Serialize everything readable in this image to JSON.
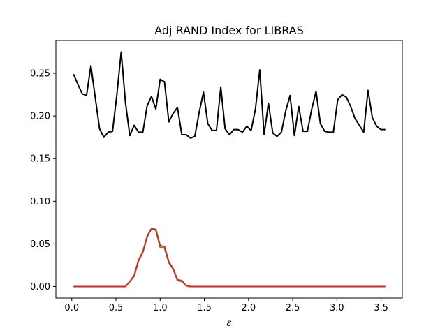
{
  "chart_data": {
    "type": "line",
    "title": "Adj RAND Index for LIBRAS",
    "xlabel": "ε",
    "ylabel": "",
    "xlim": [
      -0.18,
      3.74
    ],
    "ylim": [
      -0.0135,
      0.2885
    ],
    "xticks": [
      0.0,
      0.5,
      1.0,
      1.5,
      2.0,
      2.5,
      3.0,
      3.5
    ],
    "xtick_labels": [
      "0.0",
      "0.5",
      "1.0",
      "1.5",
      "2.0",
      "2.5",
      "3.0",
      "3.5"
    ],
    "yticks": [
      0.0,
      0.05,
      0.1,
      0.15,
      0.2,
      0.25
    ],
    "ytick_labels": [
      "0.00",
      "0.05",
      "0.10",
      "0.15",
      "0.20",
      "0.25"
    ],
    "grid": false,
    "legend": "none",
    "x": [
      0.02,
      0.069,
      0.118,
      0.167,
      0.216,
      0.265,
      0.314,
      0.363,
      0.412,
      0.461,
      0.51,
      0.559,
      0.608,
      0.657,
      0.706,
      0.755,
      0.804,
      0.853,
      0.902,
      0.951,
      1.0,
      1.049,
      1.098,
      1.147,
      1.196,
      1.245,
      1.294,
      1.343,
      1.392,
      1.441,
      1.49,
      1.539,
      1.588,
      1.637,
      1.686,
      1.735,
      1.784,
      1.833,
      1.882,
      1.931,
      1.98,
      2.029,
      2.078,
      2.127,
      2.176,
      2.225,
      2.274,
      2.323,
      2.372,
      2.421,
      2.47,
      2.519,
      2.568,
      2.617,
      2.666,
      2.715,
      2.764,
      2.813,
      2.862,
      2.911,
      2.96,
      3.009,
      3.058,
      3.107,
      3.156,
      3.205,
      3.254,
      3.303,
      3.352,
      3.401,
      3.45,
      3.499,
      3.548
    ],
    "series": [
      {
        "color": "#000000",
        "values": [
          0.249,
          0.237,
          0.226,
          0.224,
          0.259,
          0.222,
          0.185,
          0.175,
          0.181,
          0.182,
          0.225,
          0.275,
          0.215,
          0.177,
          0.189,
          0.181,
          0.181,
          0.212,
          0.223,
          0.208,
          0.243,
          0.24,
          0.193,
          0.203,
          0.21,
          0.178,
          0.178,
          0.174,
          0.176,
          0.204,
          0.228,
          0.191,
          0.183,
          0.183,
          0.234,
          0.185,
          0.178,
          0.184,
          0.184,
          0.181,
          0.188,
          0.183,
          0.208,
          0.254,
          0.178,
          0.215,
          0.18,
          0.176,
          0.181,
          0.206,
          0.224,
          0.177,
          0.211,
          0.182,
          0.182,
          0.208,
          0.229,
          0.191,
          0.182,
          0.181,
          0.181,
          0.219,
          0.225,
          0.222,
          0.211,
          0.197,
          0.189,
          0.181,
          0.23,
          0.198,
          0.188,
          0.184,
          0.184
        ]
      },
      {
        "color": "#2ca02c",
        "values": [
          0,
          0,
          0,
          0,
          0,
          0,
          0,
          0,
          0,
          0,
          0,
          0,
          0,
          0.006,
          0.012,
          0.03,
          0.04,
          0.058,
          0.068,
          0.066,
          0.046,
          0.045,
          0.028,
          0.02,
          0.007,
          0.006,
          0.001,
          0,
          0,
          0,
          0,
          0,
          0,
          0,
          0,
          0,
          0,
          0,
          0,
          0,
          0,
          0,
          0,
          0,
          0,
          0,
          0,
          0,
          0,
          0,
          0,
          0,
          0,
          0,
          0,
          0,
          0,
          0,
          0,
          0,
          0,
          0,
          0,
          0,
          0,
          0,
          0,
          0,
          0,
          0,
          0,
          0,
          0
        ]
      },
      {
        "color": "#d62728",
        "values": [
          0,
          0,
          0,
          0,
          0,
          0,
          0,
          0,
          0,
          0,
          0,
          0,
          0,
          0.006,
          0.013,
          0.031,
          0.041,
          0.059,
          0.068,
          0.067,
          0.048,
          0.047,
          0.029,
          0.021,
          0.008,
          0.007,
          0.001,
          0,
          0,
          0,
          0,
          0,
          0,
          0,
          0,
          0,
          0,
          0,
          0,
          0,
          0,
          0,
          0,
          0,
          0,
          0,
          0,
          0,
          0,
          0,
          0,
          0,
          0,
          0,
          0,
          0,
          0,
          0,
          0,
          0,
          0,
          0,
          0,
          0,
          0,
          0,
          0,
          0,
          0,
          0,
          0,
          0,
          0
        ]
      }
    ]
  }
}
